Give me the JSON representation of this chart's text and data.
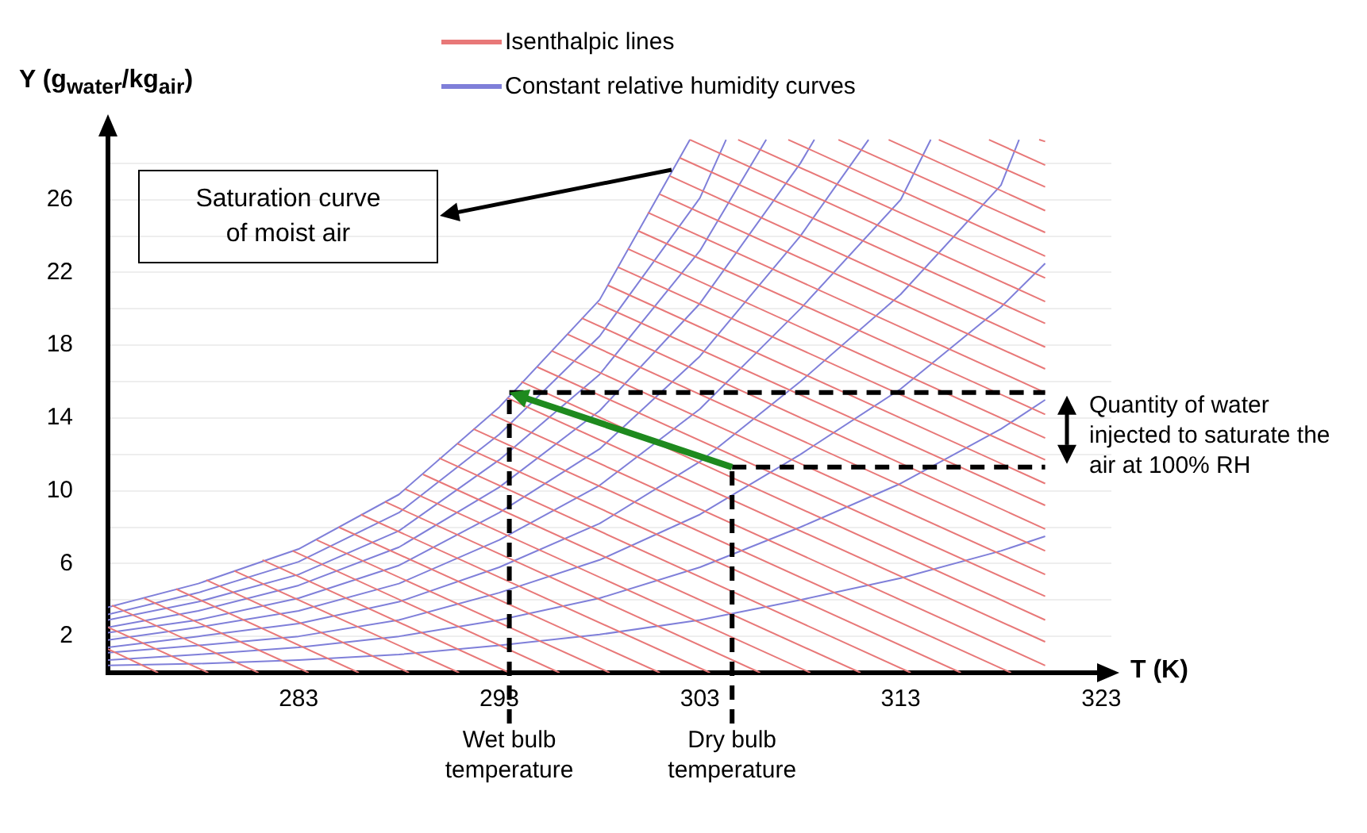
{
  "chart_data": {
    "type": "line",
    "xlabel": "T (K)",
    "ylabel": "Y (g$_{water}$/kg$_{air}$)",
    "xlim": [
      273.5,
      323.5
    ],
    "ylim": [
      0,
      30
    ],
    "xticks": [
      283,
      293,
      303,
      313,
      323
    ],
    "yticks": [
      2,
      {
        "value": 4,
        "label": null
      },
      6,
      {
        "value": 8,
        "label": null
      },
      10,
      {
        "value": 12,
        "label": null
      },
      14,
      {
        "value": 16,
        "label": null
      },
      18,
      {
        "value": 20,
        "label": null
      },
      22,
      {
        "value": 24,
        "label": null
      },
      26,
      {
        "value": 28,
        "label": null
      }
    ],
    "grid": "y",
    "legend": "top",
    "marker": "none",
    "line_style": "solid",
    "annotations": [
      "Saturation curve of moist air",
      "Quantity of water injected to saturate the air at 100% RH"
    ],
    "ref_lines": [
      {
        "axis": "x",
        "value": 293.5,
        "label": "Wet bulb temperature",
        "color": "#000000",
        "line_style": "dashed"
      },
      {
        "axis": "x",
        "value": 304.6,
        "label": "Dry bulb temperature",
        "color": "#000000",
        "line_style": "dashed"
      },
      {
        "axis": "y",
        "value": 15.4,
        "color": "#000000",
        "line_style": "dashed"
      },
      {
        "axis": "y",
        "value": 11.3,
        "color": "#000000",
        "line_style": "dashed"
      }
    ],
    "series": [
      {
        "name": "Isenthalpic lines",
        "color": "#e87878",
        "x": [
          273.5,
          276
        ],
        "values": [
          1.3,
          0
        ]
      },
      {
        "color": "#e87878",
        "x": [
          273.5,
          278.5
        ],
        "values": [
          2.5,
          0
        ]
      },
      {
        "color": "#e87878",
        "x": [
          273.7,
          281
        ],
        "values": [
          3.7,
          0
        ]
      },
      {
        "color": "#e87878",
        "x": [
          275.3,
          283.5
        ],
        "values": [
          4.1,
          0
        ]
      },
      {
        "color": "#e87878",
        "x": [
          276.9,
          286
        ],
        "values": [
          4.6,
          0
        ]
      },
      {
        "color": "#e87878",
        "x": [
          278.4,
          288.5
        ],
        "values": [
          5.1,
          0
        ]
      },
      {
        "color": "#e87878",
        "x": [
          279.8,
          291
        ],
        "values": [
          5.6,
          0
        ]
      },
      {
        "color": "#e87878",
        "x": [
          281.2,
          293.5
        ],
        "values": [
          6.2,
          0
        ]
      },
      {
        "color": "#e87878",
        "x": [
          282.7,
          296
        ],
        "values": [
          6.7,
          0
        ]
      },
      {
        "color": "#e87878",
        "x": [
          283.9,
          298.5
        ],
        "values": [
          7.3,
          0
        ]
      },
      {
        "color": "#e87878",
        "x": [
          285,
          301
        ],
        "values": [
          8,
          0
        ]
      },
      {
        "color": "#e87878",
        "x": [
          286.1,
          303.5
        ],
        "values": [
          8.7,
          0
        ]
      },
      {
        "color": "#e87878",
        "x": [
          287.3,
          306
        ],
        "values": [
          9.4,
          0
        ]
      },
      {
        "color": "#e87878",
        "x": [
          288.3,
          308.5
        ],
        "values": [
          10.1,
          0
        ]
      },
      {
        "color": "#e87878",
        "x": [
          289.2,
          311
        ],
        "values": [
          10.9,
          0
        ]
      },
      {
        "color": "#e87878",
        "x": [
          290,
          313.5
        ],
        "values": [
          11.8,
          0
        ]
      },
      {
        "color": "#e87878",
        "x": [
          290.9,
          316
        ],
        "values": [
          12.6,
          0
        ]
      },
      {
        "color": "#e87878",
        "x": [
          291.7,
          318.5
        ],
        "values": [
          13.4,
          0
        ]
      },
      {
        "color": "#e87878",
        "x": [
          292.6,
          320.2
        ],
        "values": [
          14.2,
          0.4
        ]
      },
      {
        "color": "#e87878",
        "x": [
          293.4,
          320.2
        ],
        "values": [
          15.1,
          1.7
        ]
      },
      {
        "color": "#e87878",
        "x": [
          294.1,
          320.2
        ],
        "values": [
          16,
          2.9
        ]
      },
      {
        "color": "#e87878",
        "x": [
          294.9,
          320.2
        ],
        "values": [
          16.8,
          4.2
        ]
      },
      {
        "color": "#e87878",
        "x": [
          295.6,
          320.2
        ],
        "values": [
          17.7,
          5.4
        ]
      },
      {
        "color": "#e87878",
        "x": [
          296.4,
          320.2
        ],
        "values": [
          18.6,
          6.7
        ]
      },
      {
        "color": "#e87878",
        "x": [
          297.1,
          320.2
        ],
        "values": [
          19.5,
          7.9
        ]
      },
      {
        "color": "#e87878",
        "x": [
          297.9,
          320.2
        ],
        "values": [
          20.3,
          9.2
        ]
      },
      {
        "color": "#e87878",
        "x": [
          298.4,
          320.2
        ],
        "values": [
          21.3,
          10.4
        ]
      },
      {
        "color": "#e87878",
        "x": [
          298.9,
          320.2
        ],
        "values": [
          22.3,
          11.7
        ]
      },
      {
        "color": "#e87878",
        "x": [
          299.4,
          320.2
        ],
        "values": [
          23.3,
          12.9
        ]
      },
      {
        "color": "#e87878",
        "x": [
          299.9,
          320.2
        ],
        "values": [
          24.3,
          14.2
        ]
      },
      {
        "color": "#e87878",
        "x": [
          300.4,
          320.2
        ],
        "values": [
          25.3,
          15.4
        ]
      },
      {
        "color": "#e87878",
        "x": [
          301,
          320.2
        ],
        "values": [
          26.3,
          16.7
        ]
      },
      {
        "color": "#e87878",
        "x": [
          301.5,
          320.2
        ],
        "values": [
          27.3,
          17.9
        ]
      },
      {
        "color": "#e87878",
        "x": [
          302,
          320.2
        ],
        "values": [
          28.3,
          19.2
        ]
      },
      {
        "color": "#e87878",
        "x": [
          302.5,
          320.2
        ],
        "values": [
          29.3,
          20.4
        ]
      },
      {
        "color": "#e87878",
        "x": [
          304.9,
          320.2
        ],
        "values": [
          29.3,
          21.7
        ]
      },
      {
        "color": "#e87878",
        "x": [
          307.4,
          320.2
        ],
        "values": [
          29.3,
          22.9
        ]
      },
      {
        "color": "#e87878",
        "x": [
          309.9,
          320.2
        ],
        "values": [
          29.3,
          24.2
        ]
      },
      {
        "color": "#e87878",
        "x": [
          312.4,
          320.2
        ],
        "values": [
          29.3,
          25.4
        ]
      },
      {
        "color": "#e87878",
        "x": [
          314.9,
          320.2
        ],
        "values": [
          29.3,
          26.7
        ]
      },
      {
        "color": "#e87878",
        "x": [
          317.4,
          320.2
        ],
        "values": [
          29.3,
          27.9
        ]
      },
      {
        "color": "#e87878",
        "x": [
          319.9,
          320.2
        ],
        "values": [
          29.3,
          29.2
        ]
      },
      {
        "name": "Constant relative humidity curves",
        "color": "#7f7fd9",
        "x": [
          273.5,
          278,
          283,
          288,
          293,
          298,
          303,
          308,
          313,
          318,
          320.2
        ],
        "values": [
          0.4,
          0.5,
          0.7,
          1.0,
          1.5,
          2.1,
          2.9,
          4.0,
          5.2,
          6.7,
          7.5
        ]
      },
      {
        "color": "#7f7fd9",
        "x": [
          273.5,
          278,
          283,
          288,
          293,
          298,
          303,
          308,
          313,
          318,
          320.2
        ],
        "values": [
          0.7,
          1.0,
          1.4,
          2.0,
          2.9,
          4.1,
          5.8,
          8.0,
          10.4,
          13.4,
          15.0
        ]
      },
      {
        "color": "#7f7fd9",
        "x": [
          273.5,
          278,
          283,
          288,
          293,
          298,
          303,
          308,
          313,
          318,
          320.2
        ],
        "values": [
          1.1,
          1.5,
          2.0,
          2.9,
          4.4,
          6.2,
          8.7,
          12.0,
          15.6,
          20.1,
          22.5
        ]
      },
      {
        "color": "#7f7fd9",
        "x": [
          273.5,
          278,
          283,
          288,
          293,
          298,
          303,
          308,
          313,
          318,
          318.9
        ],
        "values": [
          1.4,
          2.0,
          2.7,
          3.9,
          5.8,
          8.2,
          11.6,
          16.0,
          20.8,
          26.8,
          29.3
        ]
      },
      {
        "color": "#7f7fd9",
        "x": [
          273.5,
          278,
          283,
          288,
          293,
          298,
          303,
          308,
          313,
          314.5
        ],
        "values": [
          1.8,
          2.5,
          3.4,
          4.9,
          7.3,
          10.3,
          14.5,
          20.0,
          26.0,
          29.3
        ]
      },
      {
        "color": "#7f7fd9",
        "x": [
          273.5,
          278,
          283,
          288,
          293,
          298,
          303,
          308,
          311.4
        ],
        "values": [
          2.2,
          2.9,
          4.1,
          5.9,
          8.8,
          12.3,
          17.4,
          24.0,
          29.3
        ]
      },
      {
        "color": "#7f7fd9",
        "x": [
          273.5,
          278,
          283,
          288,
          293,
          298,
          303,
          308,
          308.7
        ],
        "values": [
          2.5,
          3.4,
          4.8,
          6.9,
          10.2,
          14.4,
          20.3,
          28.0,
          29.3
        ]
      },
      {
        "color": "#7f7fd9",
        "x": [
          273.5,
          278,
          283,
          288,
          293,
          298,
          303,
          306.3
        ],
        "values": [
          2.9,
          3.9,
          5.4,
          7.8,
          11.7,
          16.4,
          23.2,
          29.3
        ]
      },
      {
        "color": "#7f7fd9",
        "x": [
          273.5,
          278,
          283,
          288,
          293,
          298,
          303,
          304.3
        ],
        "values": [
          3.2,
          4.4,
          6.1,
          8.8,
          13.1,
          18.5,
          26.1,
          29.3
        ]
      },
      {
        "color": "#7f7fd9",
        "x": [
          273.5,
          278,
          283,
          288,
          293,
          298,
          302.5
        ],
        "values": [
          3.6,
          4.9,
          6.8,
          9.8,
          14.6,
          20.5,
          29.3
        ]
      }
    ]
  }
}
